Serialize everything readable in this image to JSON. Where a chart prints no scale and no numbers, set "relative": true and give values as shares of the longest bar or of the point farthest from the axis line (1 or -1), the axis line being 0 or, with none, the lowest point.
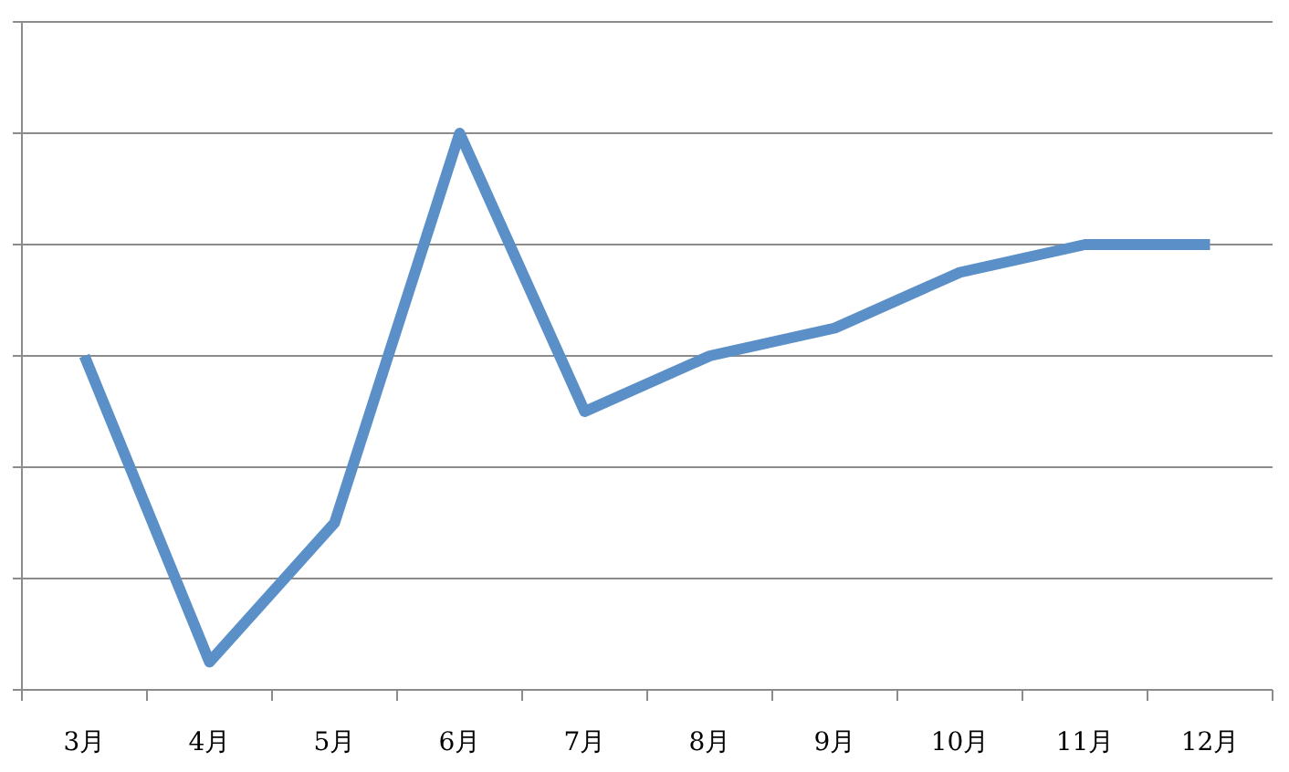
{
  "chart_data": {
    "type": "line",
    "relative": true,
    "grid": "y",
    "categories": [
      "3月",
      "4月",
      "5月",
      "6月",
      "7月",
      "8月",
      "9月",
      "10月",
      "11月",
      "12月"
    ],
    "series": [
      {
        "color": "#5a8fc8",
        "values": [
          0.6,
          0.05,
          0.3,
          1,
          0.5,
          0.6,
          0.65,
          0.75,
          0.8,
          0.8
        ]
      }
    ]
  }
}
